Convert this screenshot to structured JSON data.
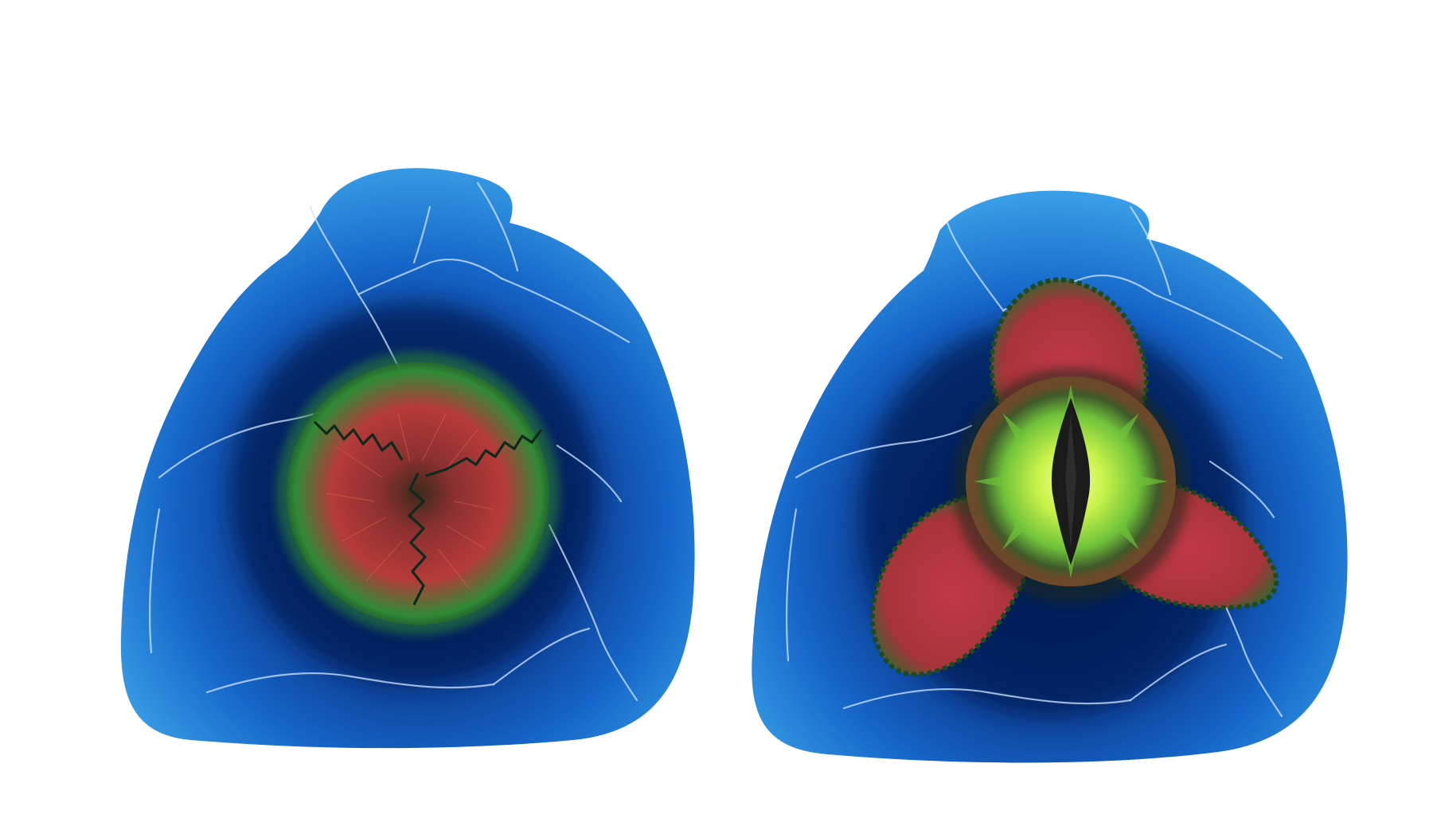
{
  "artwork": {
    "subjects": [
      {
        "name": "closed-eye-pod",
        "state": "closed",
        "shell_colors": {
          "outer": "#3aa0e8",
          "mid": "#1565c8",
          "deep": "#0a2f7e",
          "core": "#041a55",
          "vein": "#cfe6ff"
        },
        "orb_colors": {
          "red": "#b73a3a",
          "green": "#2f8a35",
          "dark": "#1a3a1a",
          "seam": "#0e2a1c"
        }
      },
      {
        "name": "open-eye-pod",
        "state": "open",
        "shell_colors": {
          "outer": "#3aa0e8",
          "mid": "#1565c8",
          "deep": "#0a2f7e",
          "core": "#041a55",
          "vein": "#cfe6ff"
        },
        "petal_colors": {
          "red": "#c0384a",
          "green": "#2c6a2e",
          "edge": "#1c4a22"
        },
        "iris_colors": {
          "center": "#f4ff9a",
          "inner": "#c8f24a",
          "outer": "#6fc23a",
          "rim": "#6a4a2a",
          "pupil": "#1a1a1a"
        }
      }
    ],
    "background": "#ffffff"
  }
}
